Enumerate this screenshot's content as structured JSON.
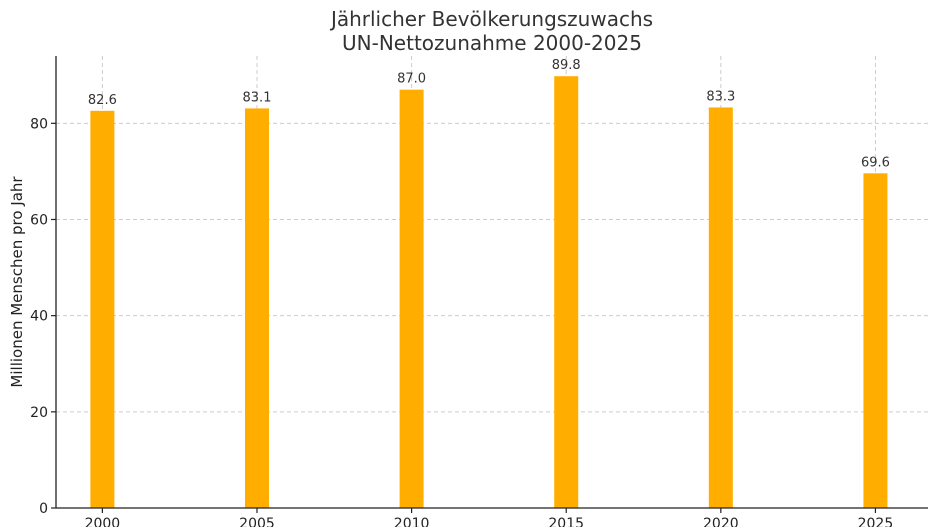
{
  "chart_data": {
    "type": "bar",
    "title": "Jährlicher Bevölkerungszuwachs",
    "subtitle": "UN-Nettozunahme 2000-2025",
    "xlabel": "",
    "ylabel": "Millionen Menschen pro Jahr",
    "categories": [
      "2000",
      "2005",
      "2010",
      "2015",
      "2020",
      "2025"
    ],
    "x": [
      2000,
      2005,
      2010,
      2015,
      2020,
      2025
    ],
    "values": [
      82.6,
      83.1,
      87.0,
      89.8,
      83.3,
      69.6
    ],
    "value_labels": [
      "82.6",
      "83.1",
      "87.0",
      "89.8",
      "83.3",
      "69.6"
    ],
    "ylim": [
      0,
      94
    ],
    "xlim": [
      1998.5,
      2026.7
    ],
    "yticks": [
      0,
      20,
      40,
      60,
      80
    ],
    "ytick_labels": [
      "0",
      "20",
      "40",
      "60",
      "80"
    ],
    "grid": true,
    "bar_color": "#FFAE00"
  }
}
